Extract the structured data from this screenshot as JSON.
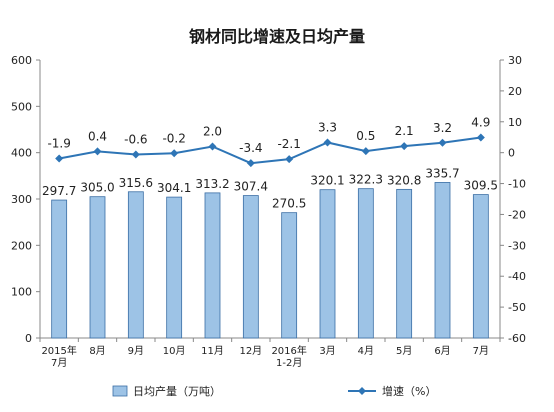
{
  "chart_data": {
    "type": "bar+line",
    "title": "钢材同比增速及日均产量",
    "categories": [
      [
        "2015年",
        "7月"
      ],
      [
        "8月"
      ],
      [
        "9月"
      ],
      [
        "10月"
      ],
      [
        "11月"
      ],
      [
        "12月"
      ],
      [
        "2016年",
        "1-2月"
      ],
      [
        "3月"
      ],
      [
        "4月"
      ],
      [
        "5月"
      ],
      [
        "6月"
      ],
      [
        "7月"
      ]
    ],
    "series": [
      {
        "name": "日均产量（万吨）",
        "type": "bar",
        "axis": "left",
        "color": "#9dc3e6",
        "values": [
          297.7,
          305.0,
          315.6,
          304.1,
          313.2,
          307.4,
          270.5,
          320.1,
          322.3,
          320.8,
          335.7,
          309.5
        ],
        "labels": [
          "297.7",
          "305.0",
          "315.6",
          "304.1",
          "313.2",
          "307.4",
          "270.5",
          "320.1",
          "322.3",
          "320.8",
          "335.7",
          "309.5"
        ]
      },
      {
        "name": "增速（%）",
        "type": "line",
        "axis": "right",
        "color": "#2e75b6",
        "values": [
          -1.9,
          0.4,
          -0.6,
          -0.2,
          2.0,
          -3.4,
          -2.1,
          3.3,
          0.5,
          2.1,
          3.2,
          4.9
        ],
        "labels": [
          "-1.9",
          "0.4",
          "-0.6",
          "-0.2",
          "2.0",
          "-3.4",
          "-2.1",
          "3.3",
          "0.5",
          "2.1",
          "3.2",
          "4.9"
        ]
      }
    ],
    "y_left": {
      "min": 0,
      "max": 600,
      "step": 100,
      "ticks": [
        "0",
        "100",
        "200",
        "300",
        "400",
        "500",
        "600"
      ]
    },
    "y_right": {
      "min": -60,
      "max": 30,
      "step": 10,
      "ticks": [
        "-60",
        "-50",
        "-40",
        "-30",
        "-20",
        "-10",
        "0",
        "10",
        "20",
        "30"
      ]
    },
    "grid": false,
    "legend_position": "bottom"
  }
}
